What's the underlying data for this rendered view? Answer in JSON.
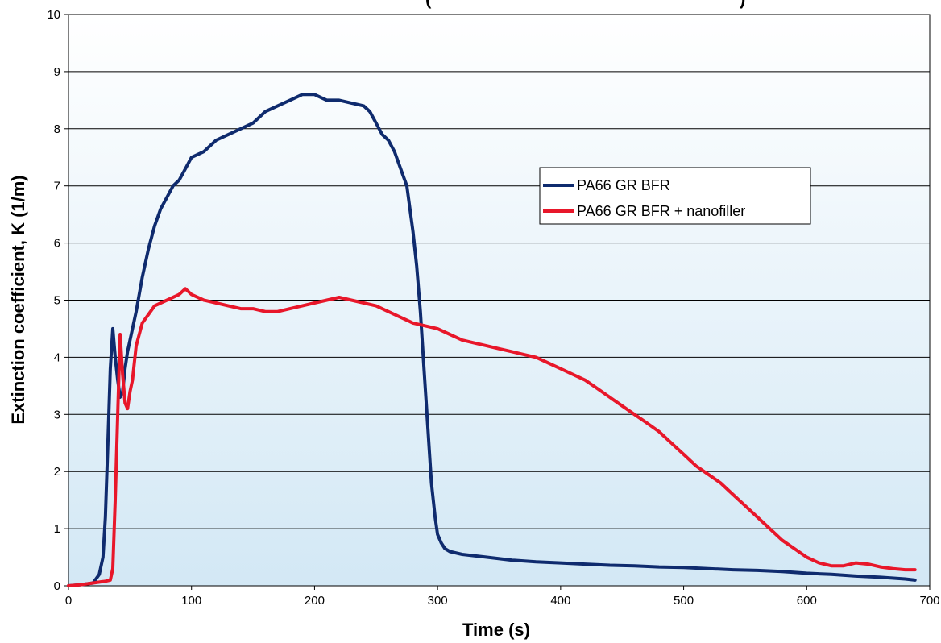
{
  "chart_data": {
    "type": "line",
    "title": "",
    "title_partial": "(",
    "title_partial_close": ")",
    "xlabel": "Time (s)",
    "ylabel": "Extinction coefficient, K (1/m)",
    "xlim": [
      0,
      700
    ],
    "ylim": [
      0,
      10
    ],
    "xticks": [
      "0",
      "100",
      "200",
      "300",
      "400",
      "500",
      "600",
      "700"
    ],
    "yticks": [
      "0",
      "1",
      "2",
      "3",
      "4",
      "5",
      "6",
      "7",
      "8",
      "9",
      "10"
    ],
    "grid": "horizontal",
    "legend_position": "right",
    "series": [
      {
        "name": "PA66 GR BFR",
        "color": "#0f2b6e",
        "x": [
          0,
          10,
          20,
          25,
          28,
          30,
          32,
          34,
          36,
          38,
          40,
          42,
          44,
          46,
          48,
          50,
          55,
          60,
          65,
          70,
          75,
          80,
          85,
          90,
          95,
          100,
          110,
          120,
          130,
          140,
          150,
          160,
          170,
          180,
          190,
          200,
          210,
          220,
          230,
          240,
          245,
          250,
          255,
          260,
          265,
          270,
          275,
          280,
          283,
          286,
          289,
          292,
          295,
          298,
          300,
          303,
          306,
          310,
          320,
          340,
          360,
          380,
          400,
          420,
          440,
          460,
          480,
          500,
          520,
          540,
          560,
          580,
          600,
          620,
          640,
          660,
          680,
          688
        ],
        "y": [
          0,
          0.02,
          0.05,
          0.2,
          0.5,
          1.2,
          2.5,
          3.8,
          4.5,
          4.0,
          3.6,
          3.3,
          3.4,
          3.8,
          4.1,
          4.3,
          4.8,
          5.4,
          5.9,
          6.3,
          6.6,
          6.8,
          7.0,
          7.1,
          7.3,
          7.5,
          7.6,
          7.8,
          7.9,
          8.0,
          8.1,
          8.3,
          8.4,
          8.5,
          8.6,
          8.6,
          8.5,
          8.5,
          8.45,
          8.4,
          8.3,
          8.1,
          7.9,
          7.8,
          7.6,
          7.3,
          7.0,
          6.2,
          5.6,
          4.8,
          3.8,
          2.8,
          1.8,
          1.2,
          0.9,
          0.75,
          0.65,
          0.6,
          0.55,
          0.5,
          0.45,
          0.42,
          0.4,
          0.38,
          0.36,
          0.35,
          0.33,
          0.32,
          0.3,
          0.28,
          0.27,
          0.25,
          0.22,
          0.2,
          0.17,
          0.15,
          0.12,
          0.1
        ]
      },
      {
        "name": "PA66 GR BFR + nanofiller",
        "color": "#e8172a",
        "x": [
          0,
          10,
          20,
          30,
          34,
          36,
          38,
          40,
          42,
          44,
          46,
          48,
          50,
          52,
          55,
          60,
          70,
          80,
          90,
          95,
          100,
          110,
          120,
          130,
          140,
          150,
          160,
          170,
          180,
          190,
          200,
          210,
          220,
          230,
          240,
          250,
          260,
          270,
          280,
          290,
          300,
          310,
          320,
          330,
          340,
          350,
          360,
          370,
          380,
          390,
          400,
          410,
          420,
          430,
          440,
          450,
          460,
          470,
          480,
          490,
          500,
          510,
          520,
          530,
          540,
          550,
          560,
          570,
          580,
          590,
          600,
          610,
          620,
          630,
          640,
          650,
          660,
          670,
          680,
          688
        ],
        "y": [
          0,
          0.02,
          0.05,
          0.08,
          0.1,
          0.3,
          1.5,
          3.0,
          4.4,
          3.7,
          3.2,
          3.1,
          3.4,
          3.6,
          4.2,
          4.6,
          4.9,
          5.0,
          5.1,
          5.2,
          5.1,
          5.0,
          4.95,
          4.9,
          4.85,
          4.85,
          4.8,
          4.8,
          4.85,
          4.9,
          4.95,
          5.0,
          5.05,
          5.0,
          4.95,
          4.9,
          4.8,
          4.7,
          4.6,
          4.55,
          4.5,
          4.4,
          4.3,
          4.25,
          4.2,
          4.15,
          4.1,
          4.05,
          4.0,
          3.9,
          3.8,
          3.7,
          3.6,
          3.45,
          3.3,
          3.15,
          3.0,
          2.85,
          2.7,
          2.5,
          2.3,
          2.1,
          1.95,
          1.8,
          1.6,
          1.4,
          1.2,
          1.0,
          0.8,
          0.65,
          0.5,
          0.4,
          0.35,
          0.35,
          0.4,
          0.38,
          0.33,
          0.3,
          0.28,
          0.28
        ]
      }
    ]
  }
}
